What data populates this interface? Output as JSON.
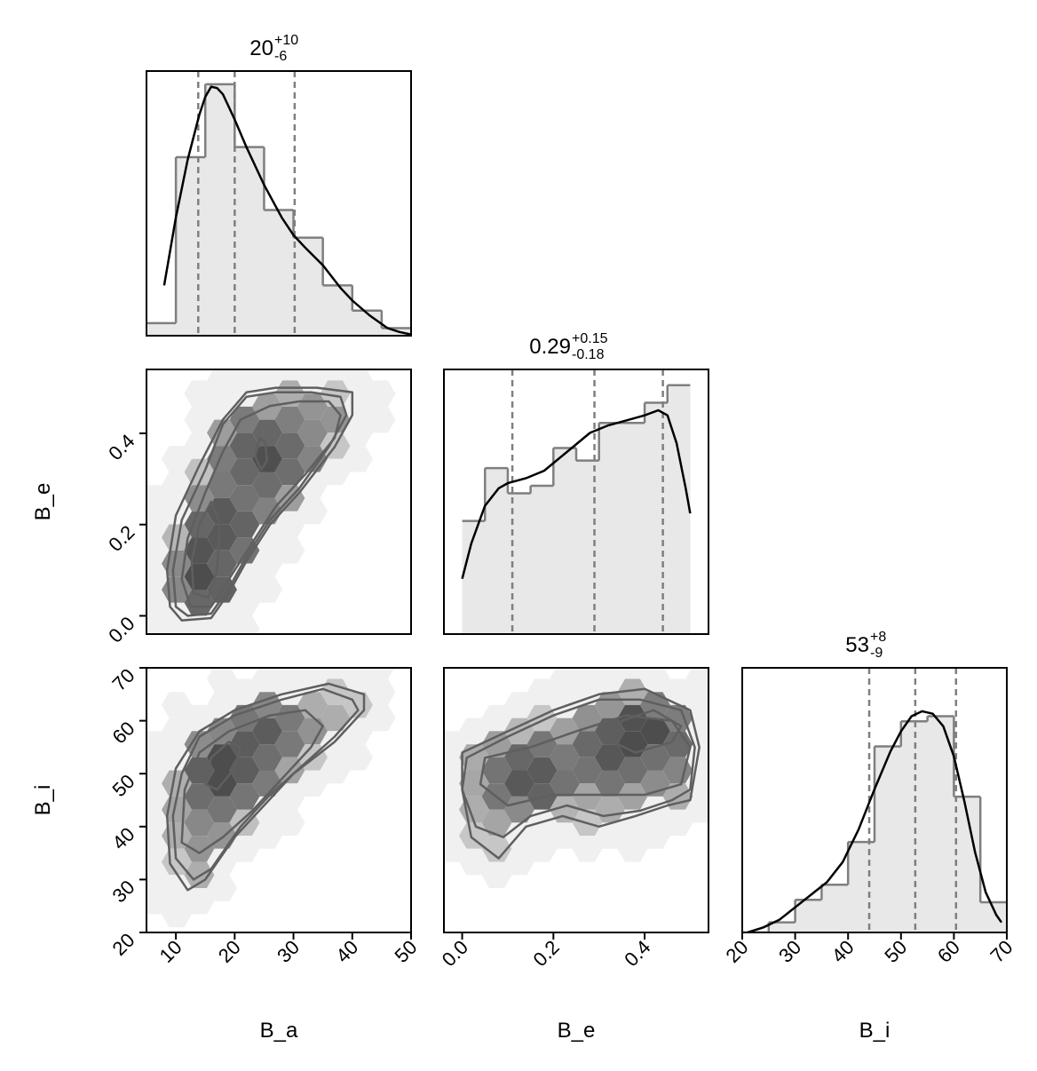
{
  "chart_data": {
    "type": "corner",
    "parameters": [
      {
        "key": "B_a",
        "axis_label": "B_a",
        "title": {
          "median": "20",
          "plus": "+10",
          "minus": "-6"
        },
        "range": [
          5,
          50
        ],
        "ticks": [
          10,
          20,
          30,
          40,
          50
        ],
        "quantiles": [
          13.8,
          20.0,
          30.2
        ],
        "hist": {
          "edges": [
            5,
            10,
            15,
            20,
            25,
            30,
            35,
            40,
            45,
            50
          ],
          "heights": [
            0.05,
            0.71,
            1.0,
            0.75,
            0.5,
            0.39,
            0.2,
            0.1,
            0.03
          ]
        },
        "kde": {
          "x": [
            8,
            10,
            12,
            14,
            15,
            16,
            17,
            18,
            20,
            22,
            25,
            28,
            30,
            32,
            35,
            38,
            40,
            43,
            46,
            48,
            50
          ],
          "y": [
            0.2,
            0.47,
            0.7,
            0.88,
            0.95,
            0.99,
            0.985,
            0.96,
            0.86,
            0.75,
            0.6,
            0.47,
            0.4,
            0.35,
            0.28,
            0.19,
            0.14,
            0.08,
            0.03,
            0.015,
            0.005
          ]
        }
      },
      {
        "key": "B_e",
        "axis_label": "B_e",
        "title": {
          "median": "0.29",
          "plus": "+0.15",
          "minus": "-0.18"
        },
        "range": [
          -0.04,
          0.54
        ],
        "ticks": [
          0.0,
          0.2,
          0.4
        ],
        "tick_labels": [
          "0.0",
          "0.2",
          "0.4"
        ],
        "quantiles": [
          0.11,
          0.29,
          0.44
        ],
        "hist": {
          "edges": [
            0.0,
            0.05,
            0.1,
            0.15,
            0.2,
            0.25,
            0.3,
            0.35,
            0.4,
            0.45,
            0.5
          ],
          "heights": [
            0.45,
            0.66,
            0.56,
            0.59,
            0.74,
            0.69,
            0.84,
            0.84,
            0.92,
            0.99
          ]
        },
        "kde": {
          "x": [
            0.0,
            0.02,
            0.05,
            0.08,
            0.1,
            0.14,
            0.18,
            0.2,
            0.24,
            0.28,
            0.32,
            0.36,
            0.4,
            0.43,
            0.45,
            0.47,
            0.49,
            0.5
          ],
          "y": [
            0.22,
            0.36,
            0.51,
            0.58,
            0.6,
            0.62,
            0.65,
            0.68,
            0.74,
            0.8,
            0.83,
            0.85,
            0.87,
            0.89,
            0.87,
            0.76,
            0.58,
            0.48
          ]
        }
      },
      {
        "key": "B_i",
        "axis_label": "B_i",
        "title": {
          "median": "53",
          "plus": "+8",
          "minus": "-9"
        },
        "range": [
          20,
          70
        ],
        "ticks": [
          20,
          30,
          40,
          50,
          60,
          70
        ],
        "quantiles": [
          44.0,
          52.7,
          60.4
        ],
        "hist": {
          "edges": [
            20,
            25,
            30,
            35,
            40,
            45,
            50,
            55,
            60,
            65,
            70
          ],
          "heights": [
            0.0,
            0.04,
            0.13,
            0.19,
            0.36,
            0.74,
            0.84,
            0.86,
            0.54,
            0.12
          ]
        },
        "kde": {
          "x": [
            21,
            24,
            27,
            30,
            33,
            36,
            39,
            42,
            45,
            48,
            50,
            52,
            54,
            56,
            58,
            60,
            62,
            64,
            66,
            68,
            69
          ],
          "y": [
            0.0,
            0.02,
            0.05,
            0.1,
            0.15,
            0.2,
            0.28,
            0.41,
            0.57,
            0.72,
            0.8,
            0.86,
            0.88,
            0.87,
            0.82,
            0.7,
            0.52,
            0.32,
            0.16,
            0.07,
            0.04
          ]
        }
      }
    ],
    "pairs": [
      {
        "x": "B_a",
        "y": "B_e",
        "density_peak": [
          [
            15,
            0.08
          ],
          [
            18,
            0.2
          ],
          [
            25,
            0.35
          ]
        ],
        "contours": [
          [
            [
              11,
              -0.01
            ],
            [
              16,
              -0.005
            ],
            [
              19,
              0.05
            ],
            [
              22,
              0.12
            ],
            [
              26,
              0.2
            ],
            [
              31,
              0.27
            ],
            [
              37,
              0.37
            ],
            [
              40,
              0.44
            ],
            [
              40,
              0.49
            ],
            [
              34,
              0.5
            ],
            [
              27,
              0.5
            ],
            [
              22,
              0.49
            ],
            [
              18,
              0.43
            ],
            [
              14,
              0.33
            ],
            [
              10,
              0.22
            ],
            [
              8.5,
              0.1
            ],
            [
              9,
              0.02
            ]
          ],
          [
            [
              12,
              0.0
            ],
            [
              16,
              0.005
            ],
            [
              19,
              0.06
            ],
            [
              22,
              0.13
            ],
            [
              26,
              0.21
            ],
            [
              31,
              0.28
            ],
            [
              36,
              0.37
            ],
            [
              39,
              0.44
            ],
            [
              38,
              0.48
            ],
            [
              33,
              0.49
            ],
            [
              27,
              0.49
            ],
            [
              22,
              0.48
            ],
            [
              18,
              0.42
            ],
            [
              15,
              0.32
            ],
            [
              11,
              0.21
            ],
            [
              9.5,
              0.1
            ],
            [
              10,
              0.02
            ]
          ],
          [
            [
              12.5,
              0.02
            ],
            [
              16,
              0.02
            ],
            [
              19,
              0.08
            ],
            [
              23,
              0.16
            ],
            [
              27,
              0.24
            ],
            [
              32,
              0.31
            ],
            [
              37,
              0.39
            ],
            [
              38,
              0.44
            ],
            [
              36,
              0.47
            ],
            [
              31,
              0.47
            ],
            [
              26,
              0.46
            ],
            [
              21,
              0.43
            ],
            [
              18,
              0.36
            ],
            [
              15,
              0.27
            ],
            [
              12,
              0.17
            ],
            [
              11,
              0.08
            ]
          ],
          [
            [
              13,
              0.05
            ],
            [
              15.5,
              0.04
            ],
            [
              17,
              0.1
            ],
            [
              17.5,
              0.2
            ],
            [
              16,
              0.25
            ],
            [
              14,
              0.2
            ],
            [
              12.7,
              0.12
            ]
          ],
          [
            [
              23.5,
              0.35
            ],
            [
              24.5,
              0.32
            ],
            [
              25.5,
              0.34
            ],
            [
              25.2,
              0.38
            ],
            [
              24.2,
              0.39
            ]
          ]
        ]
      },
      {
        "x": "B_a",
        "y": "B_i",
        "density_peak": [
          [
            17,
            50
          ],
          [
            20,
            53
          ],
          [
            23,
            58
          ]
        ],
        "contours": [
          [
            [
              9,
              33
            ],
            [
              12,
              28
            ],
            [
              15,
              30
            ],
            [
              20,
              38
            ],
            [
              25,
              44
            ],
            [
              30,
              50
            ],
            [
              37,
              56
            ],
            [
              42,
              62
            ],
            [
              42,
              65
            ],
            [
              36,
              67
            ],
            [
              28,
              65
            ],
            [
              20,
              62
            ],
            [
              14,
              58
            ],
            [
              10,
              51
            ],
            [
              8.5,
              42
            ]
          ],
          [
            [
              10,
              34
            ],
            [
              13,
              30
            ],
            [
              16,
              32
            ],
            [
              21,
              40
            ],
            [
              26,
              46
            ],
            [
              31,
              51
            ],
            [
              37,
              57
            ],
            [
              41,
              62
            ],
            [
              40,
              64
            ],
            [
              35,
              66
            ],
            [
              28,
              64
            ],
            [
              20,
              61
            ],
            [
              14,
              57
            ],
            [
              11,
              50
            ],
            [
              9.5,
              42
            ]
          ],
          [
            [
              11,
              37
            ],
            [
              14,
              35
            ],
            [
              18,
              38
            ],
            [
              23,
              43
            ],
            [
              28,
              49
            ],
            [
              33,
              55
            ],
            [
              35,
              59
            ],
            [
              32,
              62
            ],
            [
              26,
              61
            ],
            [
              19,
              58
            ],
            [
              14,
              54
            ],
            [
              11.5,
              47
            ]
          ],
          [
            [
              15,
              48
            ],
            [
              17,
              47
            ],
            [
              20,
              51
            ],
            [
              21,
              55
            ],
            [
              19,
              56
            ],
            [
              16,
              53
            ]
          ]
        ]
      },
      {
        "x": "B_e",
        "y": "B_i",
        "density_peak": [
          [
            0.33,
            55
          ],
          [
            0.43,
            59
          ],
          [
            0.15,
            49
          ]
        ],
        "contours": [
          [
            [
              0.0,
              47
            ],
            [
              0.02,
              38
            ],
            [
              0.08,
              34
            ],
            [
              0.14,
              40
            ],
            [
              0.22,
              42
            ],
            [
              0.3,
              40
            ],
            [
              0.38,
              42
            ],
            [
              0.45,
              44
            ],
            [
              0.5,
              45
            ],
            [
              0.52,
              55
            ],
            [
              0.5,
              62
            ],
            [
              0.4,
              66
            ],
            [
              0.3,
              65
            ],
            [
              0.2,
              62
            ],
            [
              0.1,
              58
            ],
            [
              0.0,
              54
            ]
          ],
          [
            [
              0.0,
              47
            ],
            [
              0.03,
              40
            ],
            [
              0.09,
              38
            ],
            [
              0.15,
              42
            ],
            [
              0.23,
              44
            ],
            [
              0.31,
              42
            ],
            [
              0.39,
              43
            ],
            [
              0.46,
              45
            ],
            [
              0.5,
              47
            ],
            [
              0.51,
              55
            ],
            [
              0.48,
              62
            ],
            [
              0.39,
              64
            ],
            [
              0.3,
              64
            ],
            [
              0.2,
              61
            ],
            [
              0.1,
              57
            ],
            [
              0.01,
              53
            ]
          ],
          [
            [
              0.04,
              48
            ],
            [
              0.1,
              44
            ],
            [
              0.2,
              46
            ],
            [
              0.3,
              46
            ],
            [
              0.4,
              46
            ],
            [
              0.48,
              48
            ],
            [
              0.5,
              55
            ],
            [
              0.46,
              60
            ],
            [
              0.36,
              61
            ],
            [
              0.25,
              58
            ],
            [
              0.15,
              55
            ],
            [
              0.05,
              53
            ]
          ],
          [
            [
              0.33,
              56
            ],
            [
              0.38,
              54
            ],
            [
              0.46,
              56
            ],
            [
              0.48,
              59
            ],
            [
              0.42,
              62
            ],
            [
              0.35,
              60
            ]
          ]
        ]
      }
    ],
    "colors": {
      "hist_fill": "#e8e8e8",
      "hist_line": "#7f7f7f",
      "kde_line": "#000000",
      "quantile_line": "#7f7f7f",
      "contour": "#5f5f5f",
      "hex_dark": "#333333"
    }
  }
}
